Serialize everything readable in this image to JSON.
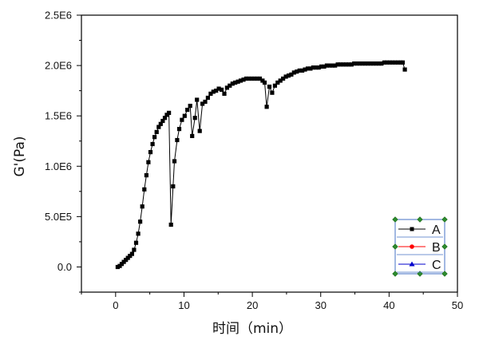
{
  "chart_data": {
    "type": "line",
    "xlabel": "时间（min）",
    "ylabel": "G'(Pa)",
    "xlim": [
      -5,
      50
    ],
    "ylim": [
      -250000,
      2500000
    ],
    "xticks": [
      0,
      10,
      20,
      30,
      40,
      50
    ],
    "xtick_labels": [
      "0",
      "10",
      "20",
      "30",
      "40",
      "50"
    ],
    "yticks": [
      0,
      500000,
      1000000,
      1500000,
      2000000,
      2500000
    ],
    "ytick_labels": [
      "0.0",
      "5.0E5",
      "1.0E6",
      "1.5E6",
      "2.0E6",
      "2.5E6"
    ],
    "legend_position": "bottom-right",
    "legend": [
      {
        "label": "A",
        "color": "#000000",
        "marker": "square"
      },
      {
        "label": "B",
        "color": "#ff0000",
        "marker": "circle"
      },
      {
        "label": "C",
        "color": "#0000cc",
        "marker": "triangle"
      }
    ],
    "series": [
      {
        "name": "A",
        "color": "#000000",
        "marker": "square",
        "x": [
          0.3,
          0.6,
          0.9,
          1.2,
          1.5,
          1.8,
          2.1,
          2.4,
          2.7,
          3.0,
          3.3,
          3.6,
          3.9,
          4.2,
          4.5,
          4.8,
          5.1,
          5.4,
          5.7,
          6.0,
          6.3,
          6.6,
          6.9,
          7.2,
          7.5,
          7.8,
          8.1,
          8.4,
          8.6,
          9.0,
          9.3,
          9.7,
          10.1,
          10.5,
          10.9,
          11.2,
          11.6,
          11.9,
          12.3,
          12.7,
          13.1,
          13.5,
          13.9,
          14.3,
          14.7,
          15.1,
          15.5,
          15.9,
          16.3,
          16.7,
          17.1,
          17.5,
          17.9,
          18.3,
          18.7,
          19.1,
          19.5,
          19.9,
          20.3,
          20.7,
          21.1,
          21.5,
          21.8,
          22.1,
          22.5,
          22.9,
          23.3,
          23.7,
          24.1,
          24.5,
          24.9,
          25.3,
          25.7,
          26.1,
          26.5,
          26.9,
          27.3,
          27.7,
          28.1,
          28.5,
          28.9,
          29.3,
          29.7,
          30.1,
          30.5,
          30.9,
          31.3,
          31.7,
          32.1,
          32.5,
          32.9,
          33.3,
          33.7,
          34.1,
          34.5,
          34.9,
          35.3,
          35.7,
          36.1,
          36.5,
          36.9,
          37.3,
          37.7,
          38.1,
          38.5,
          38.9,
          39.3,
          39.7,
          40.1,
          40.5,
          40.9,
          41.3,
          41.7,
          42.0,
          42.3
        ],
        "y": [
          0,
          10000,
          30000,
          50000,
          70000,
          90000,
          110000,
          130000,
          170000,
          240000,
          330000,
          450000,
          600000,
          770000,
          910000,
          1040000,
          1140000,
          1220000,
          1290000,
          1340000,
          1390000,
          1420000,
          1450000,
          1480000,
          1510000,
          1530000,
          420000,
          800000,
          1050000,
          1260000,
          1370000,
          1460000,
          1500000,
          1560000,
          1600000,
          1300000,
          1480000,
          1660000,
          1350000,
          1620000,
          1640000,
          1680000,
          1720000,
          1740000,
          1750000,
          1770000,
          1760000,
          1720000,
          1780000,
          1800000,
          1820000,
          1830000,
          1840000,
          1850000,
          1860000,
          1870000,
          1870000,
          1870000,
          1870000,
          1870000,
          1870000,
          1850000,
          1830000,
          1590000,
          1790000,
          1730000,
          1800000,
          1830000,
          1850000,
          1870000,
          1890000,
          1900000,
          1910000,
          1930000,
          1940000,
          1950000,
          1950000,
          1960000,
          1970000,
          1970000,
          1980000,
          1980000,
          1980000,
          1990000,
          1990000,
          2000000,
          2000000,
          2000000,
          2000000,
          2010000,
          2010000,
          2010000,
          2010000,
          2010000,
          2010000,
          2020000,
          2020000,
          2020000,
          2020000,
          2020000,
          2020000,
          2020000,
          2020000,
          2020000,
          2020000,
          2020000,
          2030000,
          2030000,
          2030000,
          2030000,
          2030000,
          2030000,
          2030000,
          2030000,
          1960000
        ]
      }
    ]
  }
}
